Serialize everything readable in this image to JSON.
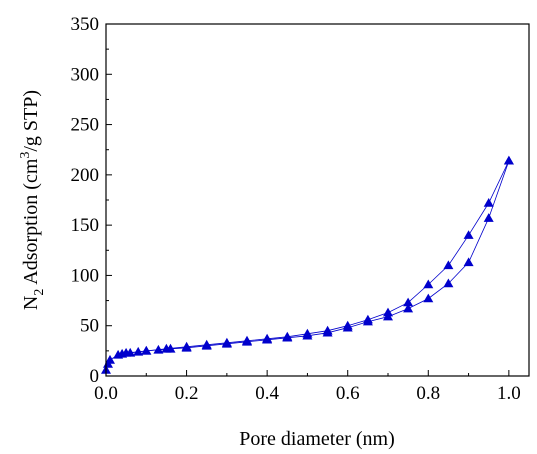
{
  "chart_data": {
    "type": "line",
    "xlabel": "Pore diameter (nm)",
    "ylabel": {
      "prefix": "N",
      "prefix_sub": "2",
      "middle": " Adsorption (cm",
      "exp": "3",
      "suffix": "/g STP)"
    },
    "xlim": [
      0.0,
      1.05
    ],
    "ylim": [
      0,
      350
    ],
    "x_ticks": [
      "0.0",
      "0.2",
      "0.4",
      "0.6",
      "0.8",
      "1.0"
    ],
    "x_tick_values": [
      0.0,
      0.2,
      0.4,
      0.6,
      0.8,
      1.0
    ],
    "y_ticks": [
      "0",
      "50",
      "100",
      "150",
      "200",
      "250",
      "300",
      "350"
    ],
    "y_tick_values": [
      0,
      50,
      100,
      150,
      200,
      250,
      300,
      350
    ],
    "grid": false,
    "legend": false,
    "marker": "triangle",
    "color": "#0000cc",
    "series": [
      {
        "x": [
          0.0,
          0.005,
          0.01,
          0.03,
          0.05,
          0.08,
          0.1,
          0.13,
          0.16,
          0.2,
          0.25,
          0.3,
          0.35,
          0.4,
          0.45,
          0.5,
          0.55,
          0.6,
          0.65,
          0.7,
          0.75,
          0.8,
          0.85,
          0.9,
          0.95,
          1.0
        ],
        "y": [
          6,
          12,
          16,
          21,
          23,
          24,
          25,
          26,
          27,
          28,
          30,
          32,
          34,
          36,
          38,
          40,
          43,
          48,
          54,
          59,
          67,
          77,
          92,
          113,
          157,
          214
        ]
      },
      {
        "x": [
          1.0,
          0.95,
          0.9,
          0.85,
          0.8,
          0.75,
          0.7,
          0.65,
          0.6,
          0.55,
          0.5,
          0.45,
          0.4,
          0.35,
          0.3,
          0.25,
          0.2,
          0.15,
          0.1,
          0.06,
          0.04
        ],
        "y": [
          214,
          172,
          140,
          110,
          91,
          73,
          63,
          56,
          50,
          45,
          42,
          39,
          37,
          35,
          33,
          31,
          29,
          27,
          25,
          23,
          22
        ]
      }
    ]
  }
}
